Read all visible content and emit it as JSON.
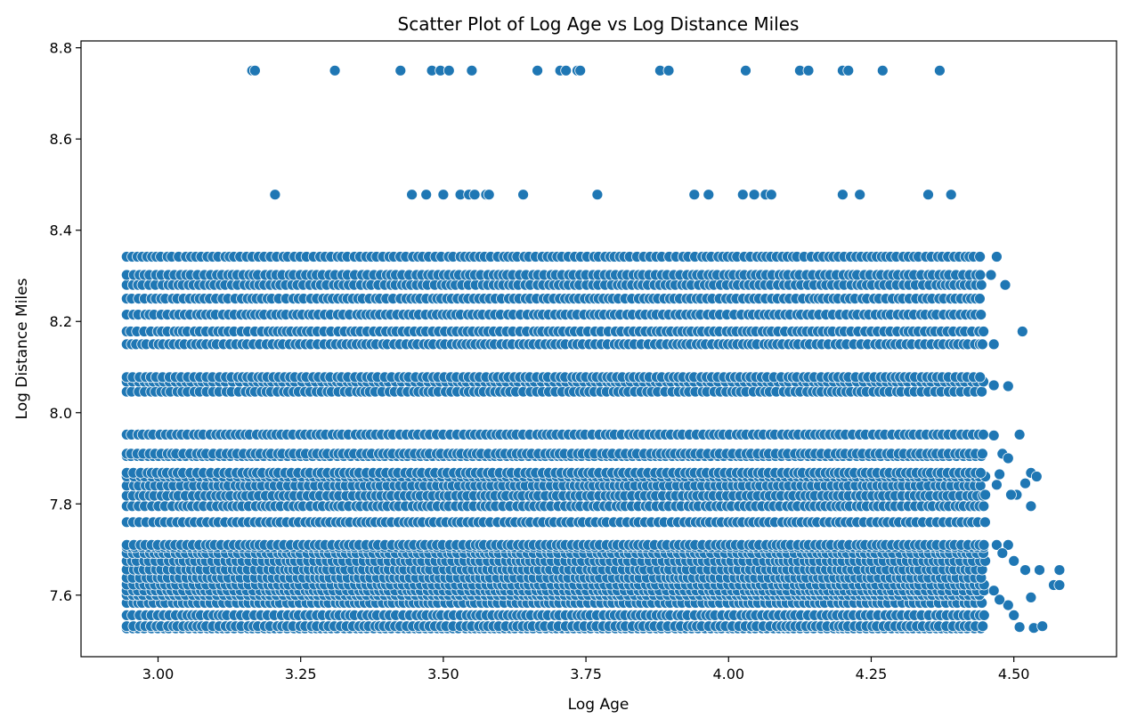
{
  "chart_data": {
    "type": "scatter",
    "title": "Scatter Plot of Log Age vs Log Distance Miles",
    "xlabel": "Log Age",
    "ylabel": "Log Distance Miles",
    "xlim": [
      2.865,
      4.68
    ],
    "ylim": [
      7.465,
      8.815
    ],
    "xticks": [
      3.0,
      3.25,
      3.5,
      3.75,
      4.0,
      4.25,
      4.5
    ],
    "xtick_labels": [
      "3.00",
      "3.25",
      "3.50",
      "3.75",
      "4.00",
      "4.25",
      "4.50"
    ],
    "yticks": [
      7.6,
      7.8,
      8.0,
      8.2,
      8.4,
      8.6,
      8.8
    ],
    "ytick_labels": [
      "7.6",
      "7.8",
      "8.0",
      "8.2",
      "8.4",
      "8.6",
      "8.8"
    ],
    "grid": false,
    "legend": "none",
    "marker_color": "#1f77b4",
    "series": [
      {
        "points": [
          [
            3.165,
            8.75
          ],
          [
            3.17,
            8.75
          ],
          [
            3.31,
            8.75
          ],
          [
            3.425,
            8.75
          ],
          [
            3.48,
            8.75
          ],
          [
            3.495,
            8.75
          ],
          [
            3.51,
            8.75
          ],
          [
            3.55,
            8.75
          ],
          [
            3.665,
            8.75
          ],
          [
            3.705,
            8.75
          ],
          [
            3.715,
            8.75
          ],
          [
            3.735,
            8.75
          ],
          [
            3.74,
            8.75
          ],
          [
            3.88,
            8.75
          ],
          [
            3.895,
            8.75
          ],
          [
            4.03,
            8.75
          ],
          [
            4.125,
            8.75
          ],
          [
            4.14,
            8.75
          ],
          [
            4.2,
            8.75
          ],
          [
            4.21,
            8.75
          ],
          [
            4.27,
            8.75
          ],
          [
            4.37,
            8.75
          ],
          [
            3.205,
            8.478
          ],
          [
            3.445,
            8.478
          ],
          [
            3.47,
            8.478
          ],
          [
            3.5,
            8.478
          ],
          [
            3.53,
            8.478
          ],
          [
            3.545,
            8.478
          ],
          [
            3.555,
            8.478
          ],
          [
            3.575,
            8.478
          ],
          [
            3.58,
            8.478
          ],
          [
            3.64,
            8.478
          ],
          [
            3.77,
            8.478
          ],
          [
            3.94,
            8.478
          ],
          [
            3.965,
            8.478
          ],
          [
            4.025,
            8.478
          ],
          [
            4.045,
            8.478
          ],
          [
            4.065,
            8.478
          ],
          [
            4.075,
            8.478
          ],
          [
            4.2,
            8.478
          ],
          [
            4.23,
            8.478
          ],
          [
            4.35,
            8.478
          ],
          [
            4.39,
            8.478
          ],
          [
            4.47,
            8.342
          ],
          [
            4.485,
            8.28
          ],
          [
            4.46,
            8.302
          ],
          [
            4.465,
            8.15
          ],
          [
            4.445,
            8.15
          ],
          [
            4.465,
            8.06
          ],
          [
            4.49,
            8.058
          ],
          [
            4.515,
            8.178
          ],
          [
            4.465,
            7.95
          ],
          [
            4.51,
            7.952
          ],
          [
            4.48,
            7.91
          ],
          [
            4.49,
            7.9
          ],
          [
            4.53,
            7.868
          ],
          [
            4.54,
            7.86
          ],
          [
            4.52,
            7.845
          ],
          [
            4.505,
            7.82
          ],
          [
            4.53,
            7.795
          ],
          [
            4.495,
            7.82
          ],
          [
            4.475,
            7.865
          ],
          [
            4.47,
            7.842
          ],
          [
            4.45,
            7.82
          ],
          [
            4.47,
            7.71
          ],
          [
            4.49,
            7.71
          ],
          [
            4.48,
            7.692
          ],
          [
            4.5,
            7.675
          ],
          [
            4.52,
            7.655
          ],
          [
            4.545,
            7.655
          ],
          [
            4.58,
            7.655
          ],
          [
            4.57,
            7.622
          ],
          [
            4.58,
            7.622
          ],
          [
            4.53,
            7.595
          ],
          [
            4.49,
            7.578
          ],
          [
            4.5,
            7.556
          ],
          [
            4.51,
            7.53
          ],
          [
            4.535,
            7.528
          ],
          [
            4.55,
            7.532
          ],
          [
            4.475,
            7.59
          ],
          [
            4.465,
            7.61
          ]
        ]
      }
    ],
    "bands": {
      "y_levels": [
        7.527,
        7.532,
        7.556,
        7.583,
        7.6,
        7.61,
        7.623,
        7.638,
        7.656,
        7.675,
        7.692,
        7.705,
        7.71,
        7.76,
        7.795,
        7.818,
        7.84,
        7.86,
        7.868,
        7.905,
        7.91,
        7.952,
        8.046,
        8.068,
        8.078,
        8.15,
        8.178,
        8.215,
        8.25,
        8.28,
        8.302,
        8.342
      ],
      "x_start": 2.945,
      "x_end": 4.45
    }
  }
}
